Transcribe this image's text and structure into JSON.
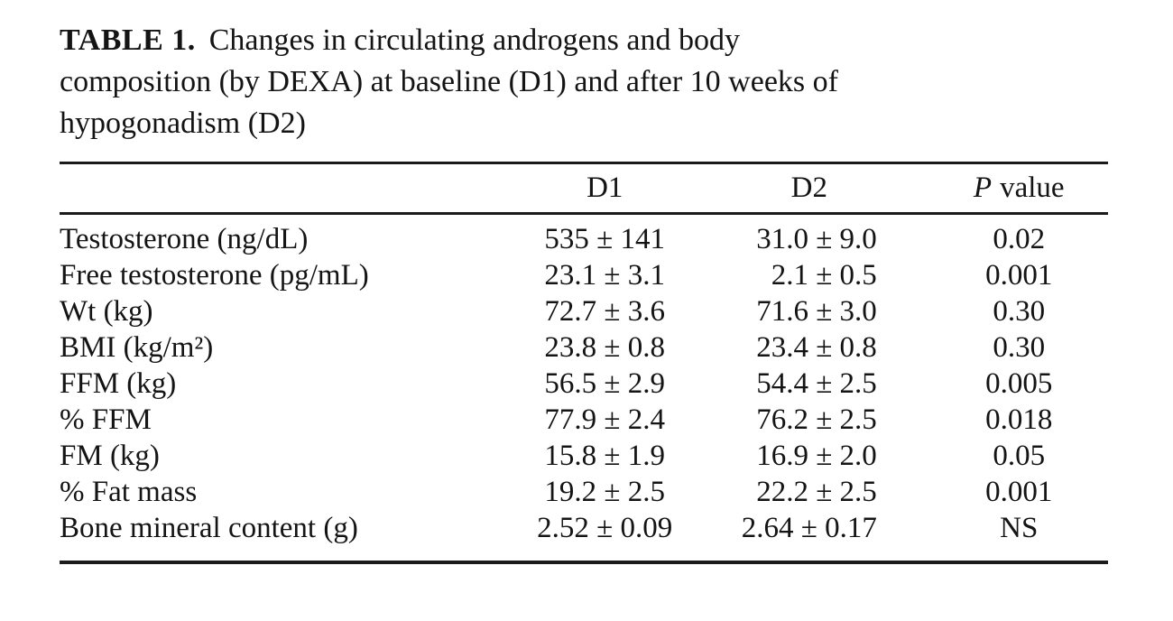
{
  "page": {
    "background": "#ffffff",
    "text_color": "#141414",
    "rule_color": "#1b1b1b"
  },
  "caption": {
    "label_bold": "TABLE 1.",
    "line1": "Changes in circulating androgens and body",
    "line2": "composition (by DEXA) at baseline (D1) and after 10 weeks of",
    "line3": "hypogonadism (D2)"
  },
  "table": {
    "header": {
      "row_label": "",
      "d1": "D1",
      "d2": "D2",
      "p_italic": "P",
      "p_rest": "value"
    },
    "rows": [
      {
        "label": "Testosterone (ng/dL)",
        "d1": "535 ± 141",
        "d2": "31.0 ± 9.0",
        "p": "0.02"
      },
      {
        "label": "Free testosterone (pg/mL)",
        "d1": "23.1 ± 3.1",
        "d2": "2.1 ± 0.5",
        "p": "0.001"
      },
      {
        "label": "Wt (kg)",
        "d1": "72.7 ± 3.6",
        "d2": "71.6 ± 3.0",
        "p": "0.30"
      },
      {
        "label": "BMI (kg/m²)",
        "d1": "23.8 ± 0.8",
        "d2": "23.4 ± 0.8",
        "p": "0.30"
      },
      {
        "label": "FFM (kg)",
        "d1": "56.5 ± 2.9",
        "d2": "54.4 ± 2.5",
        "p": "0.005"
      },
      {
        "label": "% FFM",
        "d1": "77.9 ± 2.4",
        "d2": "76.2 ± 2.5",
        "p": "0.018"
      },
      {
        "label": "FM (kg)",
        "d1": "15.8 ± 1.9",
        "d2": "16.9 ± 2.0",
        "p": "0.05"
      },
      {
        "label": "% Fat mass",
        "d1": "19.2 ± 2.5",
        "d2": "22.2 ± 2.5",
        "p": "0.001"
      },
      {
        "label": "Bone mineral content (g)",
        "d1": "2.52 ± 0.09",
        "d2": "2.64 ± 0.17",
        "p": "NS"
      }
    ]
  },
  "chart_data": {
    "type": "table",
    "title": "TABLE 1. Changes in circulating androgens and body composition (by DEXA) at baseline (D1) and after 10 weeks of hypogonadism (D2)",
    "columns": [
      "",
      "D1",
      "D2",
      "P value"
    ],
    "rows": [
      [
        "Testosterone (ng/dL)",
        "535 ± 141",
        "31.0 ± 9.0",
        "0.02"
      ],
      [
        "Free testosterone (pg/mL)",
        "23.1 ± 3.1",
        "2.1 ± 0.5",
        "0.001"
      ],
      [
        "Wt (kg)",
        "72.7 ± 3.6",
        "71.6 ± 3.0",
        "0.30"
      ],
      [
        "BMI (kg/m²)",
        "23.8 ± 0.8",
        "23.4 ± 0.8",
        "0.30"
      ],
      [
        "FFM (kg)",
        "56.5 ± 2.9",
        "54.4 ± 2.5",
        "0.005"
      ],
      [
        "% FFM",
        "77.9 ± 2.4",
        "76.2 ± 2.5",
        "0.018"
      ],
      [
        "FM (kg)",
        "15.8 ± 1.9",
        "16.9 ± 2.0",
        "0.05"
      ],
      [
        "% Fat mass",
        "19.2 ± 2.5",
        "22.2 ± 2.5",
        "0.001"
      ],
      [
        "Bone mineral content (g)",
        "2.52 ± 0.09",
        "2.64 ± 0.17",
        "NS"
      ]
    ]
  }
}
